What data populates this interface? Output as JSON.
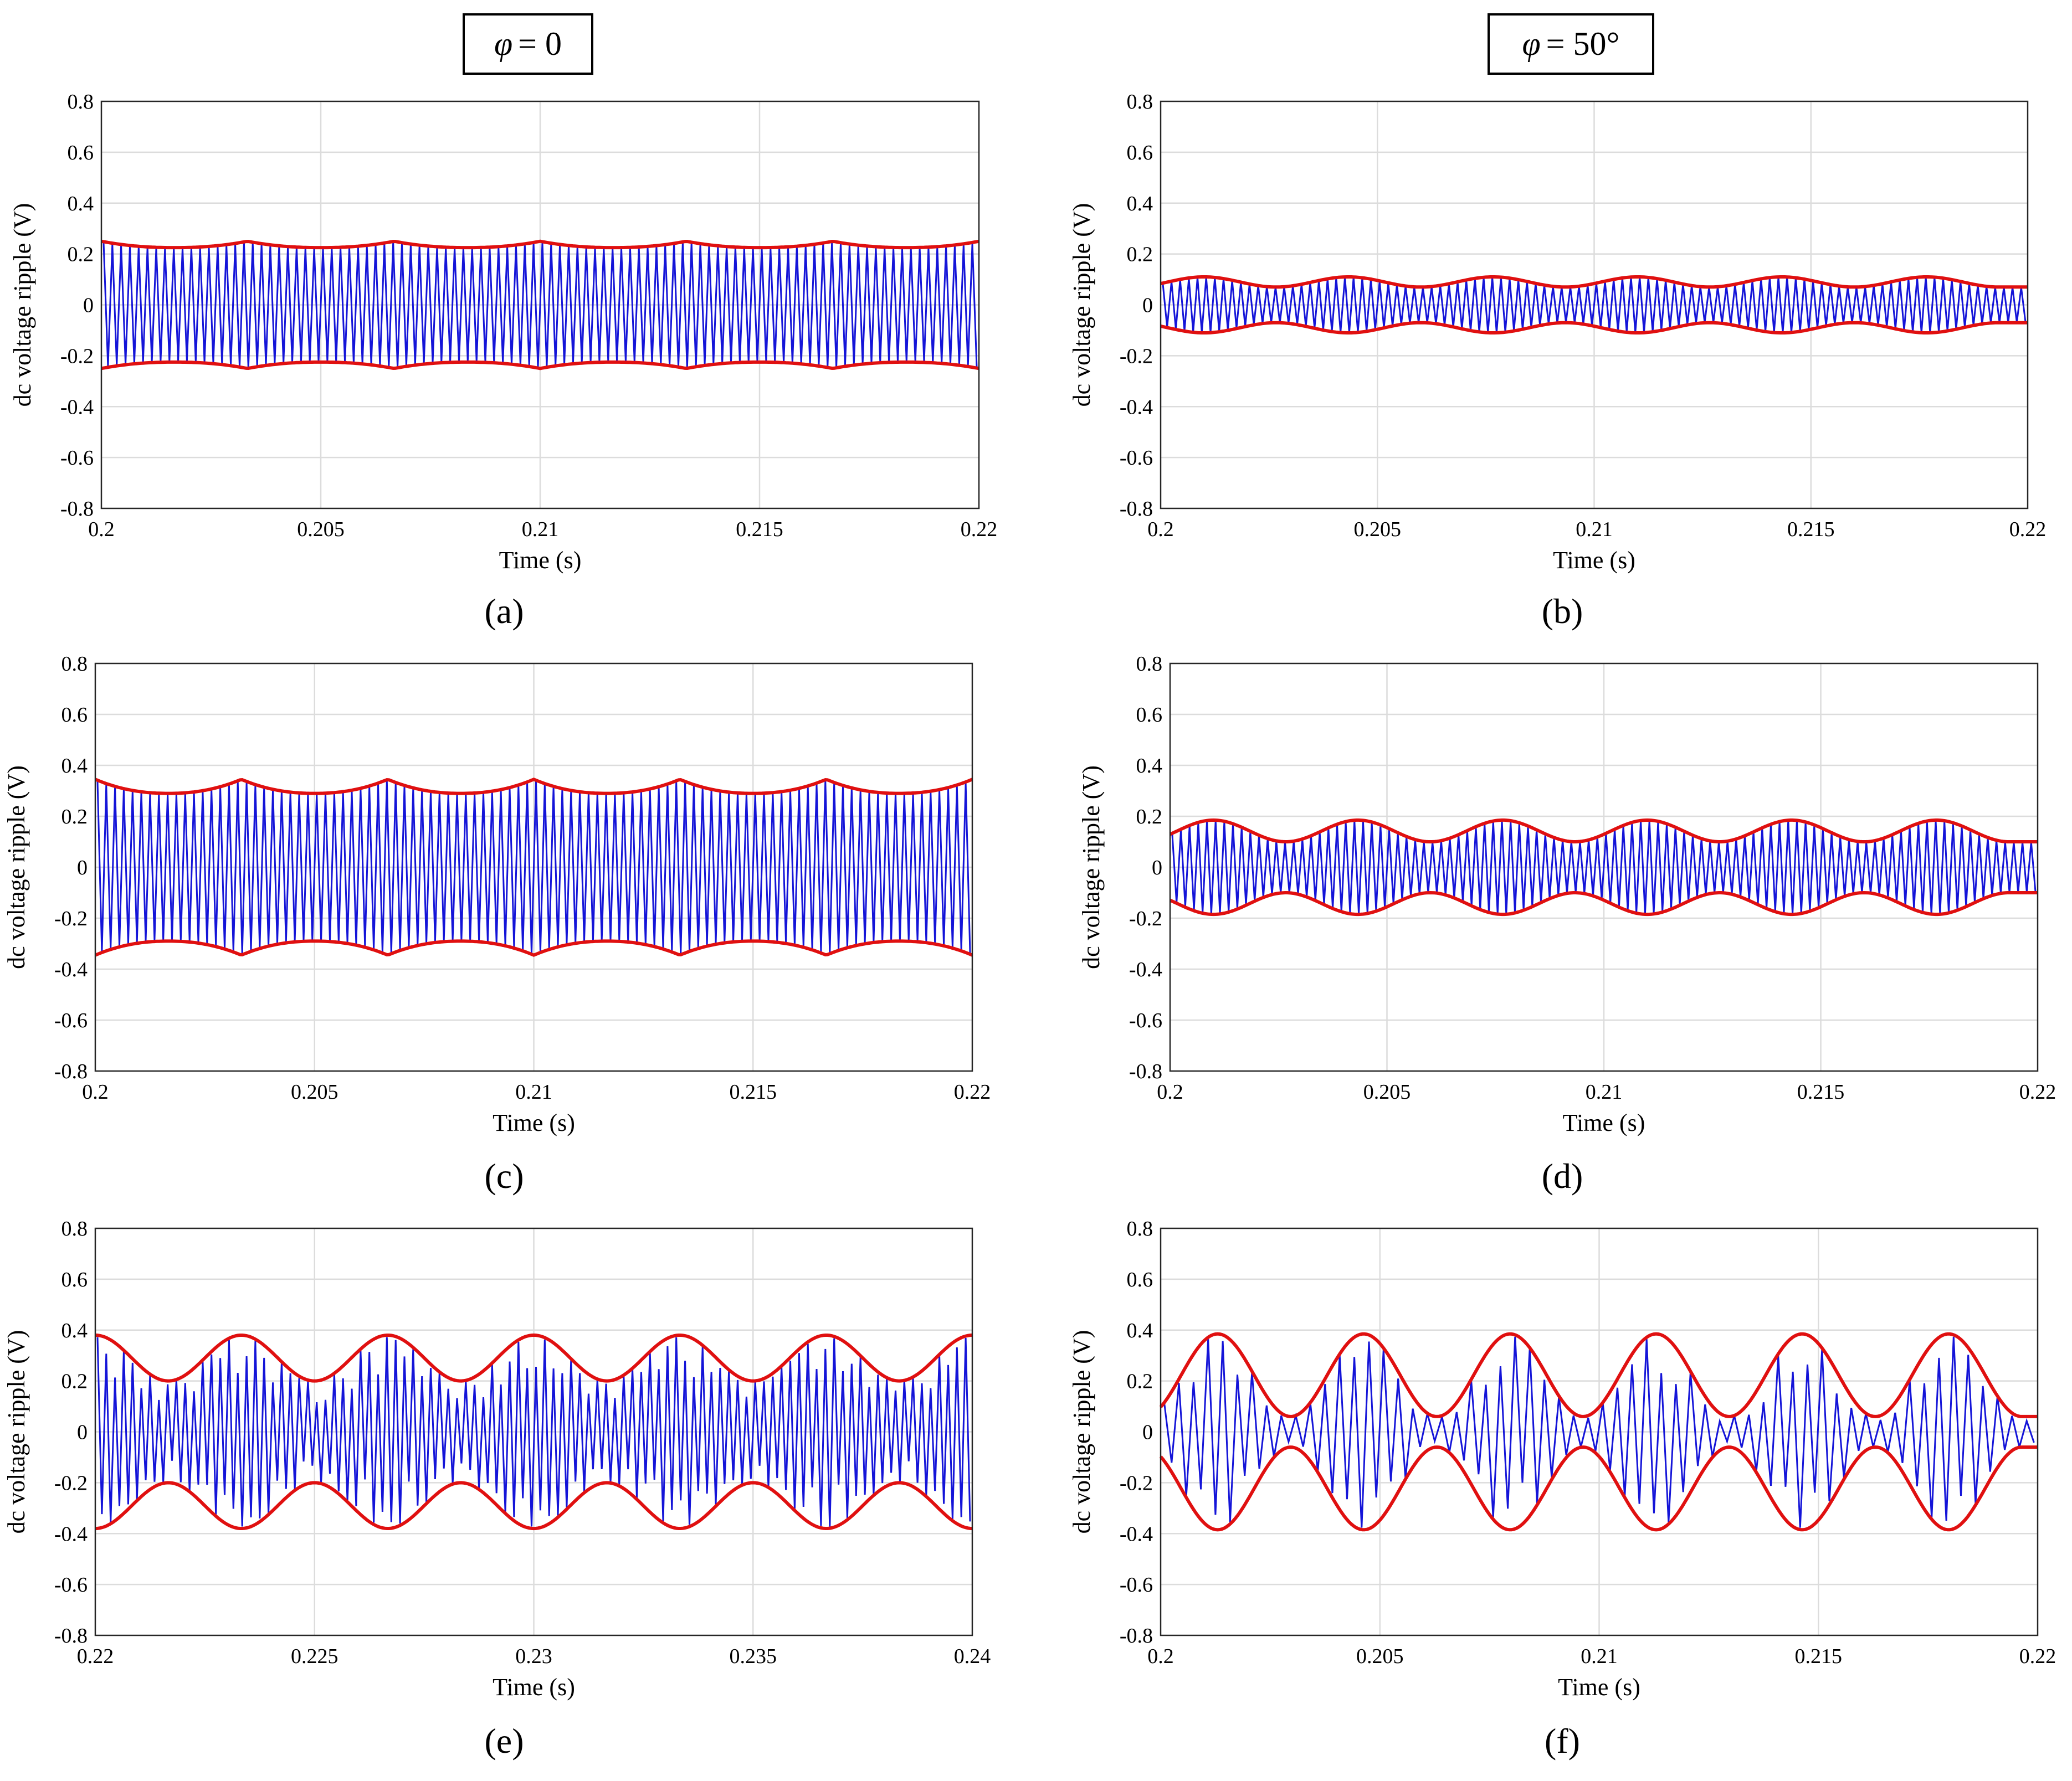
{
  "column_headers": [
    {
      "symbol": "φ",
      "value": "= 0"
    },
    {
      "symbol": "φ",
      "value": "= 50°"
    }
  ],
  "colors": {
    "signal": "#1414d8",
    "envelope": "#e01010",
    "grid": "#dcdcdc"
  },
  "chart_data": [
    {
      "id": "a",
      "label": "(a)",
      "type": "line",
      "ylabel": "dc voltage ripple (V)",
      "xlabel": "Time (s)",
      "xlim": [
        0.2,
        0.22
      ],
      "ylim": [
        -0.8,
        0.8
      ],
      "xticks": [
        "0.2",
        "0.205",
        "0.21",
        "0.215",
        "0.22"
      ],
      "yticks": [
        "0.8",
        "0.6",
        "0.4",
        "0.2",
        "0",
        "-0.2",
        "-0.4",
        "-0.6",
        "-0.8"
      ],
      "grid": true,
      "series": [
        {
          "name": "dc voltage ripple",
          "color": "#1414d8",
          "amplitude_max": 0.25,
          "amplitude_min": 0.225,
          "carrier_cycles": 100
        },
        {
          "name": "upper envelope",
          "color": "#e01010",
          "peaks_x": [
            0.2,
            0.20333,
            0.20667,
            0.21,
            0.21333,
            0.21667,
            0.22
          ],
          "peak_value": 0.25,
          "trough_value": 0.225
        },
        {
          "name": "lower envelope",
          "color": "#e01010",
          "peak_value": -0.25,
          "trough_value": -0.225
        }
      ]
    },
    {
      "id": "b",
      "label": "(b)",
      "type": "line",
      "ylabel": "dc voltage ripple (V)",
      "xlabel": "Time (s)",
      "xlim": [
        0.2,
        0.22
      ],
      "ylim": [
        -0.8,
        0.8
      ],
      "xticks": [
        "0.2",
        "0.205",
        "0.21",
        "0.215",
        "0.22"
      ],
      "yticks": [
        "0.8",
        "0.6",
        "0.4",
        "0.2",
        "0",
        "-0.2",
        "-0.4",
        "-0.6",
        "-0.8"
      ],
      "grid": true,
      "series": [
        {
          "name": "dc voltage ripple",
          "color": "#1414d8",
          "amplitude_max": 0.11,
          "amplitude_min": 0.07,
          "carrier_cycles": 100
        },
        {
          "name": "upper envelope",
          "color": "#e01010",
          "peaks_x": [
            0.201,
            0.20433,
            0.20767,
            0.211,
            0.21433,
            0.21767
          ],
          "peak_value": 0.11,
          "trough_value": 0.07
        },
        {
          "name": "lower envelope",
          "color": "#e01010",
          "peak_value": -0.11,
          "trough_value": -0.07
        }
      ]
    },
    {
      "id": "c",
      "label": "(c)",
      "type": "line",
      "ylabel": "dc voltage ripple (V)",
      "xlabel": "Time (s)",
      "xlim": [
        0.2,
        0.22
      ],
      "ylim": [
        -0.8,
        0.8
      ],
      "xticks": [
        "0.2",
        "0.205",
        "0.21",
        "0.215",
        "0.22"
      ],
      "yticks": [
        "0.8",
        "0.6",
        "0.4",
        "0.2",
        "0",
        "-0.2",
        "-0.4",
        "-0.6",
        "-0.8"
      ],
      "grid": true,
      "series": [
        {
          "name": "dc voltage ripple",
          "color": "#1414d8",
          "amplitude_max": 0.345,
          "amplitude_min": 0.29,
          "carrier_cycles": 100
        },
        {
          "name": "upper envelope",
          "color": "#e01010",
          "peaks_x": [
            0.2,
            0.20333,
            0.20667,
            0.21,
            0.21333,
            0.21667,
            0.22
          ],
          "peak_value": 0.345,
          "trough_value": 0.29
        },
        {
          "name": "lower envelope",
          "color": "#e01010",
          "peak_value": -0.345,
          "trough_value": -0.29
        }
      ]
    },
    {
      "id": "d",
      "label": "(d)",
      "type": "line",
      "ylabel": "dc voltage ripple (V)",
      "xlabel": "Time (s)",
      "xlim": [
        0.2,
        0.22
      ],
      "ylim": [
        -0.8,
        0.8
      ],
      "xticks": [
        "0.2",
        "0.205",
        "0.21",
        "0.215",
        "0.22"
      ],
      "yticks": [
        "0.8",
        "0.6",
        "0.4",
        "0.2",
        "0",
        "-0.2",
        "-0.4",
        "-0.6",
        "-0.8"
      ],
      "grid": true,
      "series": [
        {
          "name": "dc voltage ripple",
          "color": "#1414d8",
          "amplitude_max": 0.185,
          "amplitude_min": 0.1,
          "carrier_cycles": 100
        },
        {
          "name": "upper envelope",
          "color": "#e01010",
          "peaks_x": [
            0.201,
            0.20433,
            0.20767,
            0.211,
            0.21433,
            0.21767
          ],
          "peak_value": 0.185,
          "trough_value": 0.1
        },
        {
          "name": "lower envelope",
          "color": "#e01010",
          "peak_value": -0.185,
          "trough_value": -0.1
        }
      ]
    },
    {
      "id": "e",
      "label": "(e)",
      "type": "line",
      "ylabel": "dc voltage ripple (V)",
      "xlabel": "Time (s)",
      "xlim": [
        0.22,
        0.24
      ],
      "ylim": [
        -0.8,
        0.8
      ],
      "xticks": [
        "0.22",
        "0.225",
        "0.23",
        "0.235",
        "0.24"
      ],
      "yticks": [
        "0.8",
        "0.6",
        "0.4",
        "0.2",
        "0",
        "-0.2",
        "-0.4",
        "-0.6",
        "-0.8"
      ],
      "grid": true,
      "series": [
        {
          "name": "dc voltage ripple",
          "color": "#1414d8",
          "amplitude_max": 0.38,
          "amplitude_min": 0.2,
          "carrier_cycles": 100
        },
        {
          "name": "upper envelope",
          "color": "#e01010",
          "peaks_x": [
            0.22,
            0.22333,
            0.22667,
            0.23,
            0.23333,
            0.23667,
            0.24
          ],
          "peak_value": 0.38,
          "trough_value": 0.2
        },
        {
          "name": "lower envelope",
          "color": "#e01010",
          "peak_value": -0.38,
          "trough_value": -0.2
        }
      ]
    },
    {
      "id": "f",
      "label": "(f)",
      "type": "line",
      "ylabel": "dc voltage ripple (V)",
      "xlabel": "Time (s)",
      "xlim": [
        0.2,
        0.22
      ],
      "ylim": [
        -0.8,
        0.8
      ],
      "xticks": [
        "0.2",
        "0.205",
        "0.21",
        "0.215",
        "0.22"
      ],
      "yticks": [
        "0.8",
        "0.6",
        "0.4",
        "0.2",
        "0",
        "-0.2",
        "-0.4",
        "-0.6",
        "-0.8"
      ],
      "grid": true,
      "series": [
        {
          "name": "dc voltage ripple",
          "color": "#1414d8",
          "amplitude_max": 0.385,
          "amplitude_min": 0.06,
          "carrier_cycles": 60
        },
        {
          "name": "upper envelope",
          "color": "#e01010",
          "peaks_x": [
            0.2013,
            0.20463,
            0.20797,
            0.2113,
            0.21463,
            0.21797
          ],
          "peak_value": 0.385,
          "trough_value": 0.06
        },
        {
          "name": "lower envelope",
          "color": "#e01010",
          "peak_value": -0.385,
          "trough_value": -0.06
        }
      ]
    }
  ]
}
